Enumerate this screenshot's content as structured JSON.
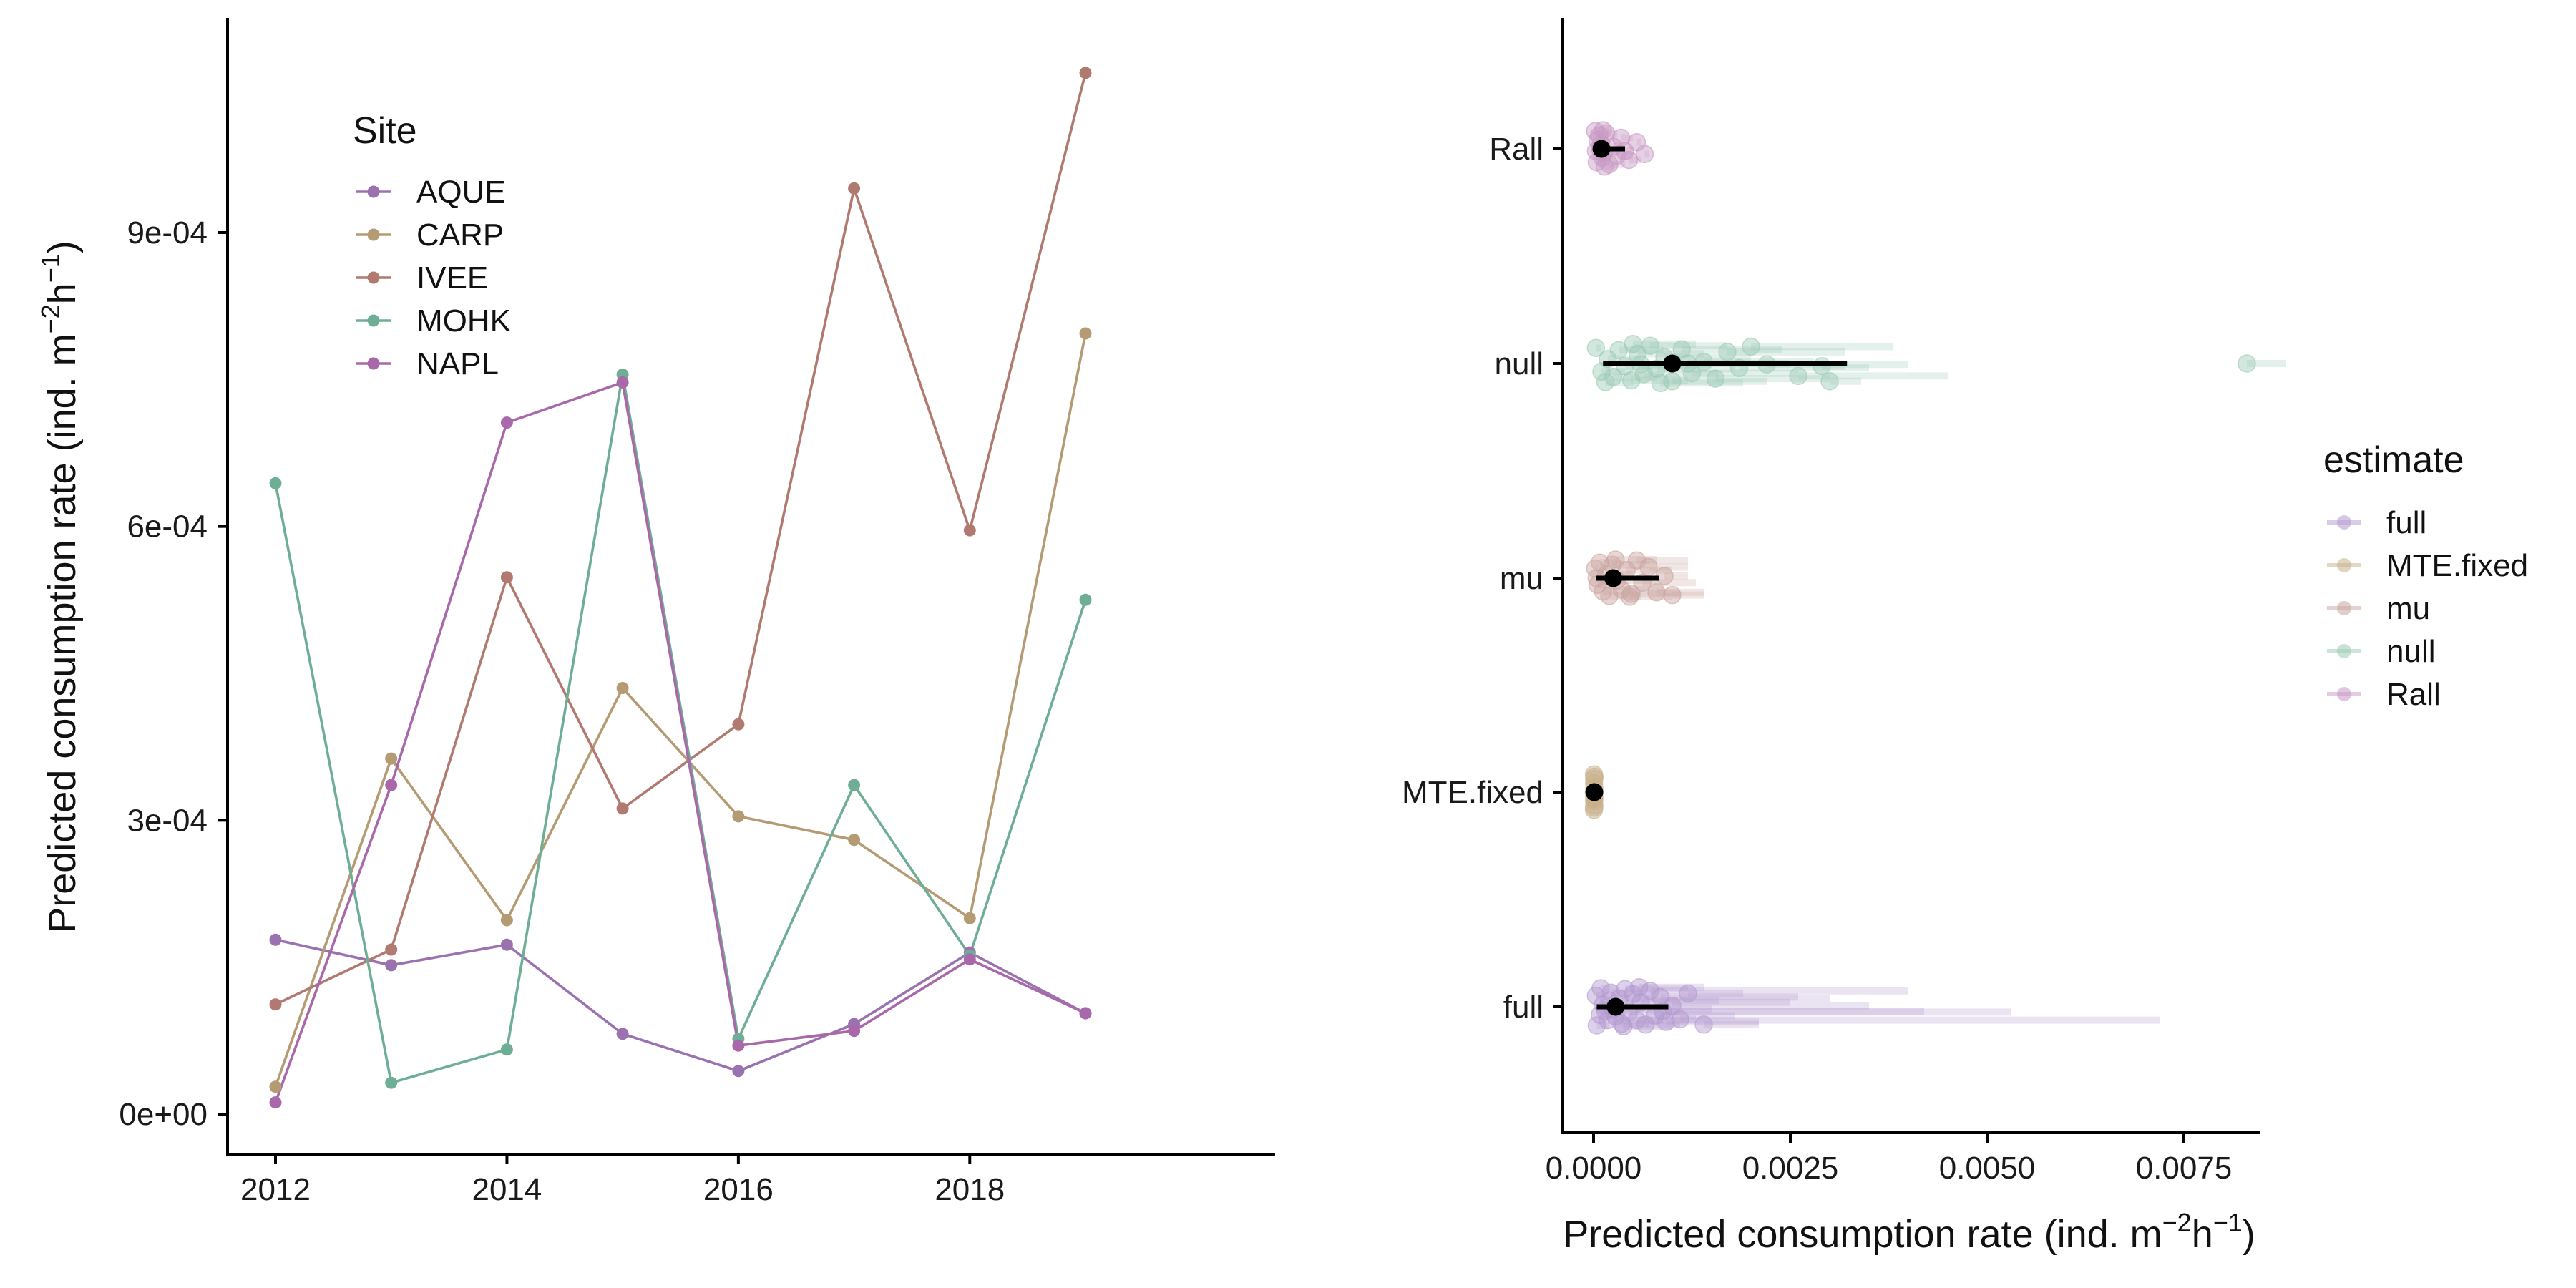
{
  "chart_data": [
    {
      "type": "line",
      "x": [
        2012,
        2013,
        2014,
        2015,
        2016,
        2017,
        2018,
        2019
      ],
      "xticks": [
        2012,
        2014,
        2016,
        2018
      ],
      "yticks": [
        0,
        0.0003,
        0.0006,
        0.0009
      ],
      "ytick_labels": [
        "0e+00",
        "3e-04",
        "6e-04",
        "9e-04"
      ],
      "xlim": [
        2011.65,
        2019.35
      ],
      "ylim": [
        -4e-05,
        0.00112
      ],
      "xlabel": "",
      "ylabel": "Predicted consumption rate (ind. m⁻²h⁻¹)",
      "ylabel_main": "Predicted consumption rate (ind. m",
      "ylabel_sup1": "−2",
      "ylabel_mid": "h",
      "ylabel_sup2": "−1",
      "ylabel_end": ")",
      "legend": {
        "title": "Site",
        "placement": "top-left"
      },
      "series": [
        {
          "name": "AQUE",
          "color": "#9b72b0",
          "values": [
            0.000178,
            0.000152,
            0.000173,
            8.2e-05,
            4.4e-05,
            9.2e-05,
            0.000165,
            0.000103
          ]
        },
        {
          "name": "CARP",
          "color": "#b49b74",
          "values": [
            2.8e-05,
            0.000363,
            0.000198,
            0.000435,
            0.000304,
            0.00028,
            0.0002,
            0.000797
          ]
        },
        {
          "name": "IVEE",
          "color": "#b07a71",
          "values": [
            0.000112,
            0.000168,
            0.000548,
            0.000312,
            0.000398,
            0.000945,
            0.000596,
            0.001063
          ]
        },
        {
          "name": "MOHK",
          "color": "#6eae95",
          "values": [
            0.000644,
            3.2e-05,
            6.6e-05,
            0.000755,
            7.7e-05,
            0.000336,
            0.000162,
            0.000525
          ]
        },
        {
          "name": "NAPL",
          "color": "#a968aa",
          "values": [
            1.2e-05,
            0.000336,
            0.000706,
            0.000747,
            7e-05,
            8.5e-05,
            0.000158,
            0.000103
          ]
        }
      ]
    },
    {
      "type": "scatter",
      "orientation": "horizontal",
      "categories": [
        "full",
        "MTE.fixed",
        "mu",
        "null",
        "Rall"
      ],
      "xticks": [
        0,
        0.0025,
        0.005,
        0.0075
      ],
      "xtick_labels": [
        "0.0000",
        "0.0025",
        "0.0050",
        "0.0075"
      ],
      "xlim": [
        -0.0005,
        0.0093
      ],
      "xlabel": "Predicted consumption rate (ind. m⁻²h⁻¹)",
      "xlabel_main": "Predicted consumption rate (ind. m",
      "xlabel_sup1": "−2",
      "xlabel_mid": "h",
      "xlabel_sup2": "−1",
      "xlabel_end": ")",
      "ylabel": "",
      "legend": {
        "title": "estimate",
        "placement": "right"
      },
      "series": [
        {
          "name": "full",
          "color": "#b49ad0",
          "summary": {
            "mean": 0.00028,
            "lo": 4e-05,
            "hi": 0.00095
          }
        },
        {
          "name": "MTE.fixed",
          "color": "#c7b08a",
          "summary": {
            "mean": 1e-05,
            "lo": 0.0,
            "hi": 2e-05
          }
        },
        {
          "name": "mu",
          "color": "#c9a5a0",
          "summary": {
            "mean": 0.00025,
            "lo": 3e-05,
            "hi": 0.00083
          }
        },
        {
          "name": "null",
          "color": "#9ccab6",
          "summary": {
            "mean": 0.001,
            "lo": 0.00012,
            "hi": 0.00322
          }
        },
        {
          "name": "Rall",
          "color": "#c898c4",
          "summary": {
            "mean": 0.0001,
            "lo": 2e-05,
            "hi": 0.0004
          }
        }
      ],
      "points": {
        "full": [
          [
            3e-05,
            -0.25,
            0.0001
          ],
          [
            8e-05,
            0.18,
            0.0004
          ],
          [
            0.00012,
            -0.05,
            0.0002
          ],
          [
            0.00018,
            0.3,
            0.0009
          ],
          [
            0.00022,
            -0.32,
            0.0006
          ],
          [
            0.00025,
            0.05,
            0.0015
          ],
          [
            0.00028,
            0.22,
            0.0003
          ],
          [
            0.00033,
            -0.18,
            0.003
          ],
          [
            0.00036,
            0.38,
            0.0007
          ],
          [
            0.0004,
            -0.4,
            0.0012
          ],
          [
            0.00045,
            0.12,
            0.0053
          ],
          [
            0.0005,
            -0.28,
            0.0008
          ],
          [
            0.00055,
            0.3,
            0.0072
          ],
          [
            0.0006,
            -0.1,
            0.0025
          ],
          [
            0.00066,
            0.4,
            0.0011
          ],
          [
            0.00072,
            -0.36,
            0.004
          ],
          [
            0.00078,
            0.2,
            0.0018
          ],
          [
            0.00085,
            -0.22,
            0.0026
          ],
          [
            0.00092,
            0.34,
            0.0021
          ],
          [
            0.001,
            -0.02,
            0.0035
          ],
          [
            0.0011,
            0.28,
            0.0013
          ],
          [
            0.0012,
            -0.3,
            0.0019
          ],
          [
            4e-05,
            0.42,
            0.0002
          ],
          [
            9e-05,
            -0.42,
            0.0003
          ],
          [
            0.00015,
            0.1,
            0.0005
          ],
          [
            0.0002,
            -0.14,
            0.0016
          ],
          [
            0.00038,
            0.44,
            0.001
          ],
          [
            0.00058,
            -0.44,
            0.0014
          ],
          [
            0.00088,
            0.1,
            0.0042
          ],
          [
            0.0014,
            0.4,
            0.0021
          ]
        ],
        "MTE.fixed": [
          [
            5e-06,
            -0.4,
            1e-05
          ],
          [
            8e-06,
            -0.3,
            1e-05
          ],
          [
            6e-06,
            -0.2,
            1e-05
          ],
          [
            1e-05,
            -0.1,
            2e-05
          ],
          [
            4e-06,
            0.0,
            1e-05
          ],
          [
            9e-06,
            0.1,
            1e-05
          ],
          [
            7e-06,
            0.2,
            1e-05
          ],
          [
            1.1e-05,
            0.3,
            2e-05
          ],
          [
            5e-06,
            0.4,
            1e-05
          ],
          [
            1.2e-05,
            -0.35,
            2e-05
          ],
          [
            6e-06,
            0.35,
            1e-05
          ],
          [
            1e-05,
            0.15,
            1e-05
          ]
        ],
        "mu": [
          [
            2e-05,
            -0.22,
            5e-05
          ],
          [
            5e-05,
            0.15,
            0.0002
          ],
          [
            8e-05,
            -0.35,
            0.0003
          ],
          [
            0.00012,
            0.3,
            0.0004
          ],
          [
            0.00016,
            -0.08,
            0.0005
          ],
          [
            0.0002,
            0.4,
            0.0006
          ],
          [
            0.00024,
            -0.3,
            0.0007
          ],
          [
            0.0003,
            0.05,
            0.0008
          ],
          [
            0.00036,
            0.26,
            0.0009
          ],
          [
            0.00042,
            -0.18,
            0.001
          ],
          [
            0.00048,
            0.35,
            0.0011
          ],
          [
            0.00055,
            -0.4,
            0.0012
          ],
          [
            0.00062,
            0.1,
            0.0013
          ],
          [
            0.0007,
            -0.25,
            0.0012
          ],
          [
            0.0008,
            0.32,
            0.0014
          ],
          [
            0.0009,
            -0.05,
            0.0012
          ],
          [
            0.001,
            0.38,
            0.0014
          ],
          [
            4e-05,
            0.0,
            0.0001
          ],
          [
            0.00028,
            -0.42,
            0.0008
          ],
          [
            0.00046,
            0.42,
            0.001
          ]
        ],
        "null": [
          [
            3e-05,
            -0.35,
            0.0001
          ],
          [
            0.0001,
            0.18,
            0.0004
          ],
          [
            0.00018,
            -0.1,
            0.0006
          ],
          [
            0.00025,
            0.3,
            0.0008
          ],
          [
            0.00032,
            -0.3,
            0.0009
          ],
          [
            0.0004,
            0.06,
            0.0011
          ],
          [
            0.00048,
            0.38,
            0.0012
          ],
          [
            0.00056,
            -0.22,
            0.0014
          ],
          [
            0.00064,
            0.24,
            0.0016
          ],
          [
            0.00072,
            -0.4,
            0.0017
          ],
          [
            0.0008,
            0.12,
            0.0018
          ],
          [
            0.0009,
            -0.14,
            0.002
          ],
          [
            0.001,
            0.4,
            0.0022
          ],
          [
            0.00112,
            -0.32,
            0.0024
          ],
          [
            0.00125,
            0.22,
            0.0026
          ],
          [
            0.0014,
            -0.04,
            0.0028
          ],
          [
            0.00155,
            0.34,
            0.003
          ],
          [
            0.0017,
            -0.26,
            0.0032
          ],
          [
            0.00185,
            0.1,
            0.0035
          ],
          [
            0.002,
            -0.38,
            0.0038
          ],
          [
            0.0022,
            0.02,
            0.004
          ],
          [
            0.0026,
            0.28,
            0.0045
          ],
          [
            0.0029,
            0.06,
            0.0032
          ],
          [
            0.003,
            0.4,
            0.0034
          ],
          [
            0.0083,
            0.0,
            0.0088
          ],
          [
            0.00015,
            0.42,
            0.0005
          ],
          [
            0.0005,
            -0.44,
            0.0013
          ],
          [
            0.00085,
            0.44,
            0.0019
          ],
          [
            0.0012,
            0.0,
            0.0025
          ],
          [
            0.0006,
            0.02,
            0.0015
          ]
        ],
        "Rall": [
          [
            2e-05,
            -0.4,
            5e-05
          ],
          [
            5e-05,
            -0.2,
            0.0001
          ],
          [
            8e-05,
            0.0,
            0.0002
          ],
          [
            0.00011,
            0.2,
            0.0002
          ],
          [
            0.00014,
            0.4,
            0.0003
          ],
          [
            4e-05,
            0.3,
            0.0001
          ],
          [
            7e-05,
            -0.3,
            0.0002
          ],
          [
            0.0001,
            -0.1,
            0.0002
          ],
          [
            0.00013,
            0.1,
            0.0003
          ],
          [
            0.00016,
            -0.35,
            0.0003
          ],
          [
            0.0002,
            0.35,
            0.0004
          ],
          [
            0.00025,
            -0.05,
            0.0004
          ],
          [
            0.0003,
            0.15,
            0.0005
          ],
          [
            0.00035,
            -0.25,
            0.0005
          ],
          [
            0.0004,
            0.05,
            0.0005
          ],
          [
            0.00045,
            0.25,
            0.0006
          ],
          [
            0.00055,
            -0.15,
            0.0006
          ],
          [
            0.00065,
            0.12,
            0.0007
          ],
          [
            3e-05,
            0.05,
            0.0001
          ],
          [
            0.00012,
            -0.42,
            0.0002
          ]
        ]
      }
    }
  ]
}
